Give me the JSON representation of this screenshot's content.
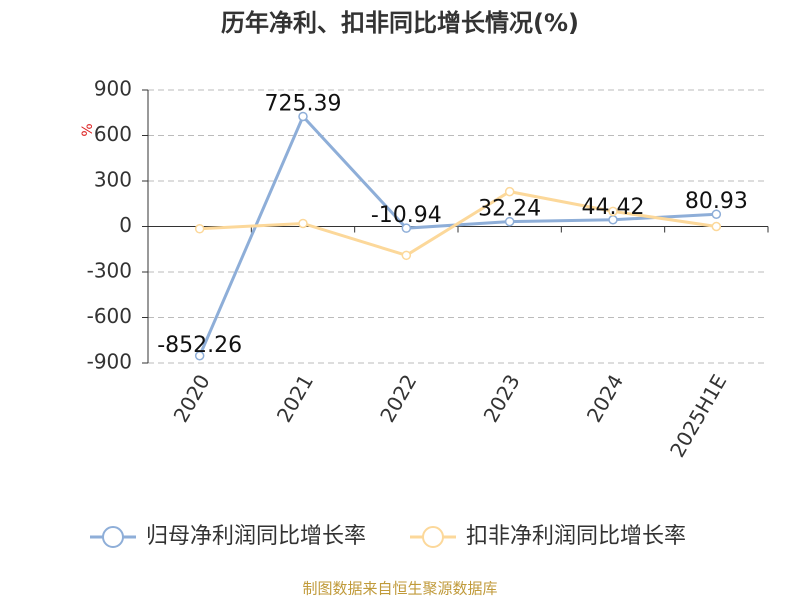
{
  "chart_data": {
    "type": "line",
    "title": "历年净利、扣非同比增长情况(%)",
    "y_label": "%",
    "categories": [
      "2020",
      "2021",
      "2022",
      "2023",
      "2024",
      "2025H1E"
    ],
    "series": [
      {
        "name": "归母净利润同比增长率",
        "color": "#8eaed8",
        "values": [
          -852.26,
          725.39,
          -10.94,
          32.24,
          44.42,
          80.93
        ]
      },
      {
        "name": "扣非净利润同比增长率",
        "color": "#fcd89a",
        "values": [
          -15,
          20,
          -190,
          230,
          100,
          0
        ]
      }
    ],
    "ylim": [
      -900,
      900
    ],
    "yticks": [
      900,
      600,
      300,
      0,
      -300,
      -600,
      -900
    ],
    "grid": true,
    "legend": "bottom",
    "source": "制图数据来自恒生聚源数据库"
  }
}
